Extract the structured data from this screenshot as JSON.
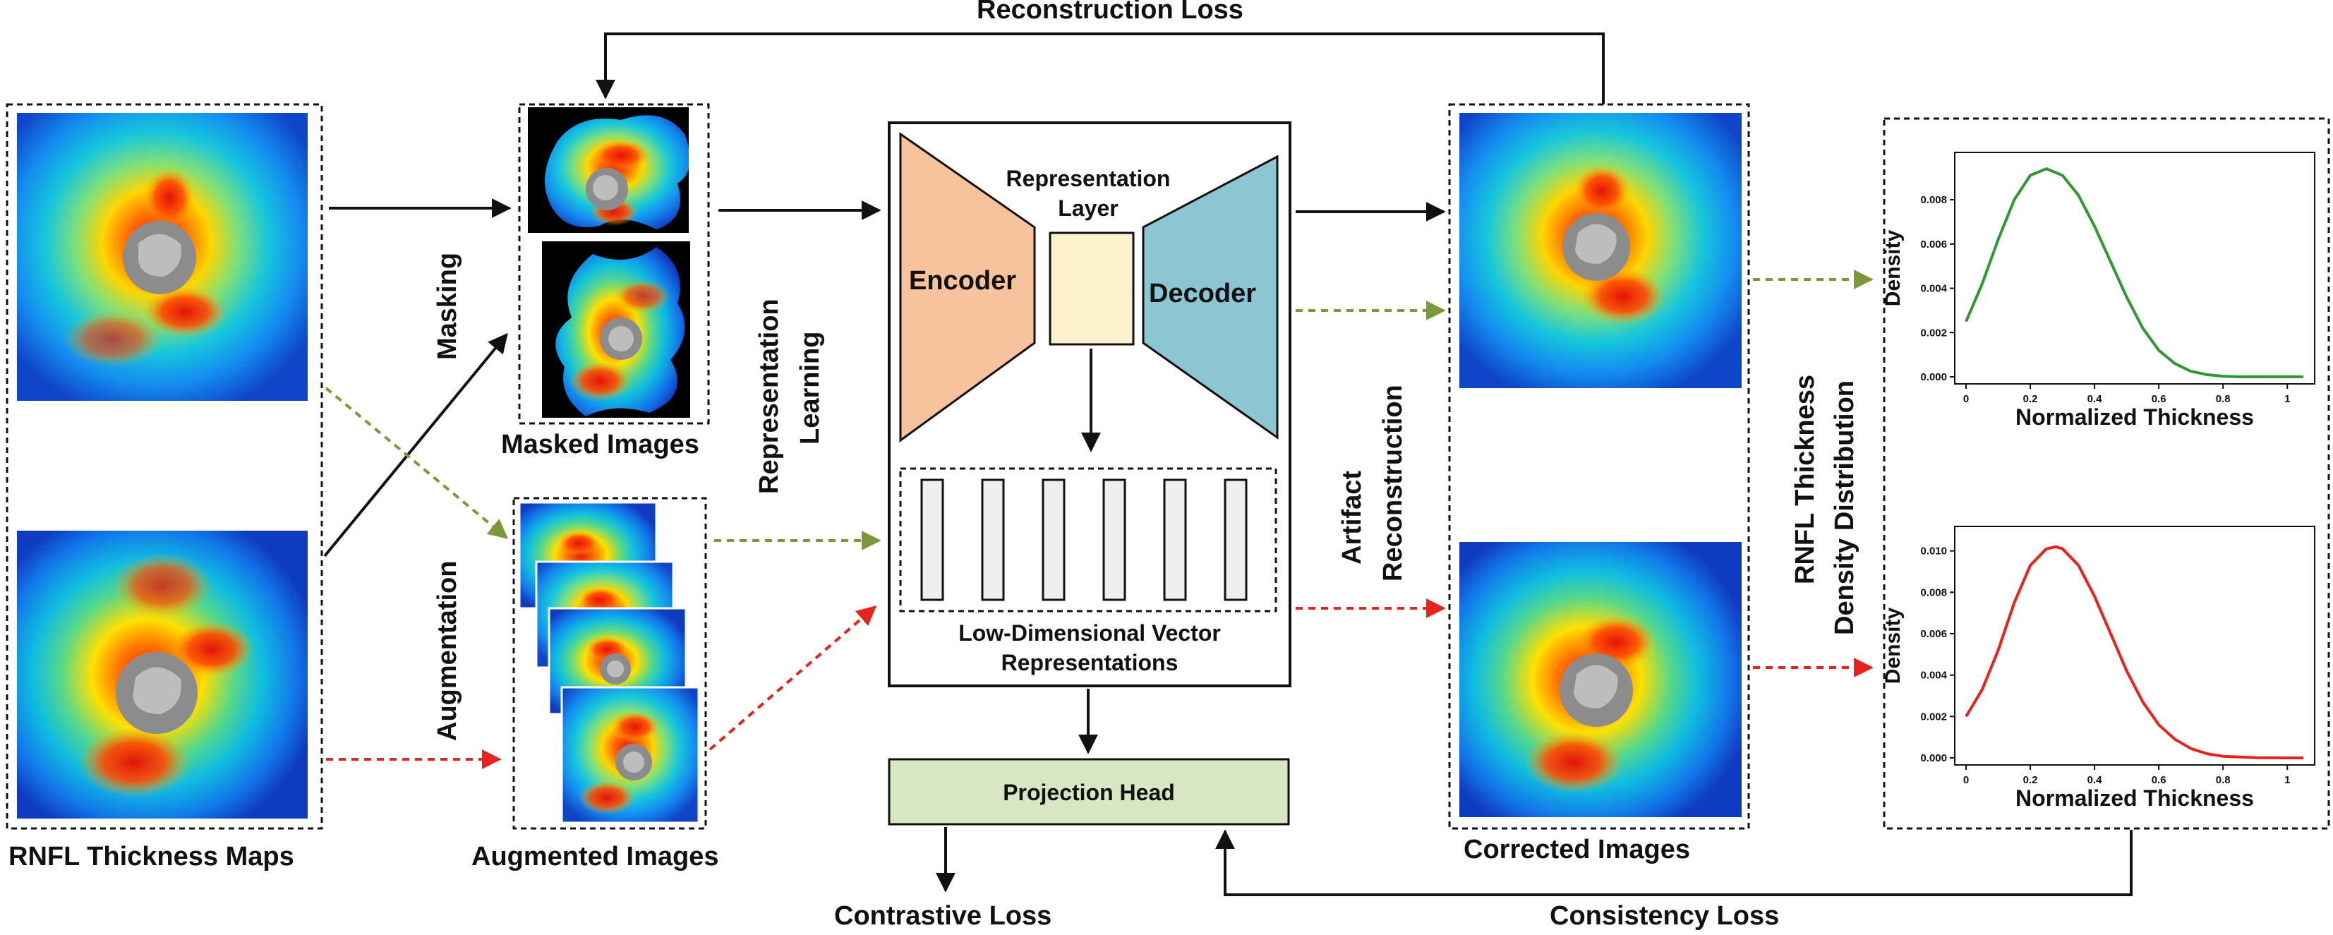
{
  "labels": {
    "reconstruction_loss": "Reconstruction Loss",
    "rnfl_maps": "RNFL Thickness Maps",
    "masking": "Masking",
    "augmentation": "Augmentation",
    "masked_images": "Masked Images",
    "augmented_images": "Augmented Images",
    "representation": "Representation",
    "learning": "Learning",
    "representation_layer_1": "Representation",
    "representation_layer_2": "Layer",
    "encoder": "Encoder",
    "decoder": "Decoder",
    "low_dim_1": "Low-Dimensional Vector",
    "low_dim_2": "Representations",
    "projection_head": "Projection Head",
    "contrastive_loss": "Contrastive Loss",
    "artifact": "Artifact",
    "reconstruction": "Reconstruction",
    "corrected_images": "Corrected Images",
    "density_dist_1": "RNFL Thickness",
    "density_dist_2": "Density Distribution",
    "consistency_loss": "Consistency Loss"
  },
  "colors": {
    "encoder": "#f7c39d",
    "decoder": "#8cc6d3",
    "representation_layer": "#fdf0cd",
    "projection_head": "#d8e6c4",
    "green_arrow": "#7a9a3a",
    "red_arrow": "#e8231c",
    "green_curve": "#2e9a2e",
    "red_curve": "#e8231c"
  },
  "chart_data": [
    {
      "type": "line",
      "title": "",
      "xlabel": "Normalized Thickness",
      "ylabel": "Density",
      "xlim": [
        0,
        1.05
      ],
      "ylim": [
        0,
        0.0095
      ],
      "xticks": [
        "0",
        "0.2",
        "0.4",
        "0.6",
        "0.8",
        "1"
      ],
      "yticks": [
        "0.000",
        "0.002",
        "0.004",
        "0.006",
        "0.008"
      ],
      "series": [
        {
          "x": [
            0,
            0.05,
            0.1,
            0.15,
            0.2,
            0.25,
            0.3,
            0.35,
            0.4,
            0.45,
            0.5,
            0.55,
            0.6,
            0.65,
            0.7,
            0.75,
            0.8,
            0.85,
            0.9,
            1.0,
            1.05
          ],
          "values": [
            0.0025,
            0.0042,
            0.0062,
            0.008,
            0.0091,
            0.0094,
            0.0091,
            0.0082,
            0.0068,
            0.0052,
            0.0036,
            0.0022,
            0.0012,
            0.0006,
            0.00025,
            0.0001,
            3e-05,
            0,
            0,
            0,
            0
          ]
        }
      ]
    },
    {
      "type": "line",
      "title": "",
      "xlabel": "Normalized Thickness",
      "ylabel": "Density",
      "xlim": [
        0,
        1.05
      ],
      "ylim": [
        0,
        0.0105
      ],
      "xticks": [
        "0",
        "0.2",
        "0.4",
        "0.6",
        "0.8",
        "1"
      ],
      "yticks": [
        "0.000",
        "0.002",
        "0.004",
        "0.006",
        "0.008",
        "0.010"
      ],
      "series": [
        {
          "x": [
            0,
            0.05,
            0.1,
            0.15,
            0.2,
            0.25,
            0.28,
            0.3,
            0.35,
            0.4,
            0.45,
            0.5,
            0.55,
            0.6,
            0.65,
            0.7,
            0.75,
            0.8,
            0.9,
            1.0,
            1.05
          ],
          "values": [
            0.002,
            0.0033,
            0.0052,
            0.0075,
            0.0093,
            0.0101,
            0.0102,
            0.0101,
            0.0093,
            0.0078,
            0.006,
            0.0042,
            0.0027,
            0.0016,
            0.0009,
            0.00045,
            0.0002,
            8e-05,
            1e-05,
            0,
            0
          ]
        }
      ]
    }
  ]
}
